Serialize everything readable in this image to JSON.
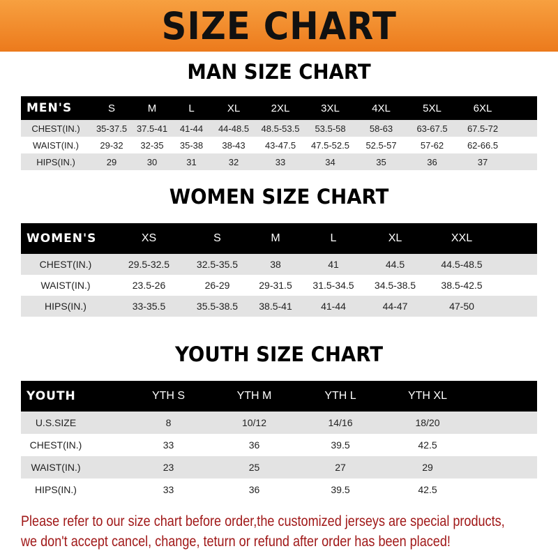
{
  "banner": {
    "title": "SIZE CHART",
    "color": "#ec7a1c"
  },
  "men": {
    "title": "MAN SIZE CHART",
    "header": [
      "MEN'S",
      "S",
      "M",
      "L",
      "XL",
      "2XL",
      "3XL",
      "4XL",
      "5XL",
      "6XL"
    ],
    "rows": [
      [
        "CHEST(IN.)",
        "35-37.5",
        "37.5-41",
        "41-44",
        "44-48.5",
        "48.5-53.5",
        "53.5-58",
        "58-63",
        "63-67.5",
        "67.5-72"
      ],
      [
        "WAIST(IN.)",
        "29-32",
        "32-35",
        "35-38",
        "38-43",
        "43-47.5",
        "47.5-52.5",
        "52.5-57",
        "57-62",
        "62-66.5"
      ],
      [
        "HIPS(IN.)",
        "29",
        "30",
        "31",
        "32",
        "33",
        "34",
        "35",
        "36",
        "37"
      ]
    ]
  },
  "women": {
    "title": "WOMEN SIZE CHART",
    "header": [
      "WOMEN'S",
      "XS",
      "S",
      "M",
      "L",
      "XL",
      "XXL"
    ],
    "rows": [
      [
        "CHEST(IN.)",
        "29.5-32.5",
        "32.5-35.5",
        "38",
        "41",
        "44.5",
        "44.5-48.5"
      ],
      [
        "WAIST(IN.)",
        "23.5-26",
        "26-29",
        "29-31.5",
        "31.5-34.5",
        "34.5-38.5",
        "38.5-42.5"
      ],
      [
        "HIPS(IN.)",
        "33-35.5",
        "35.5-38.5",
        "38.5-41",
        "41-44",
        "44-47",
        "47-50"
      ]
    ]
  },
  "youth": {
    "title": "YOUTH SIZE CHART",
    "header": [
      "YOUTH",
      "YTH S",
      "YTH M",
      "YTH L",
      "YTH XL"
    ],
    "rows": [
      [
        "U.S.SIZE",
        "8",
        "10/12",
        "14/16",
        "18/20"
      ],
      [
        "CHEST(IN.)",
        "33",
        "36",
        "39.5",
        "42.5"
      ],
      [
        "WAIST(IN.)",
        "23",
        "25",
        "27",
        "29"
      ],
      [
        "HIPS(IN.)",
        "33",
        "36",
        "39.5",
        "42.5"
      ]
    ]
  },
  "note": {
    "line1": "Please refer to our size chart before order,the customized jerseys are special products,",
    "line2": "we don't accept cancel, change, teturn or refund after order has been placed!",
    "color": "#a01818"
  }
}
